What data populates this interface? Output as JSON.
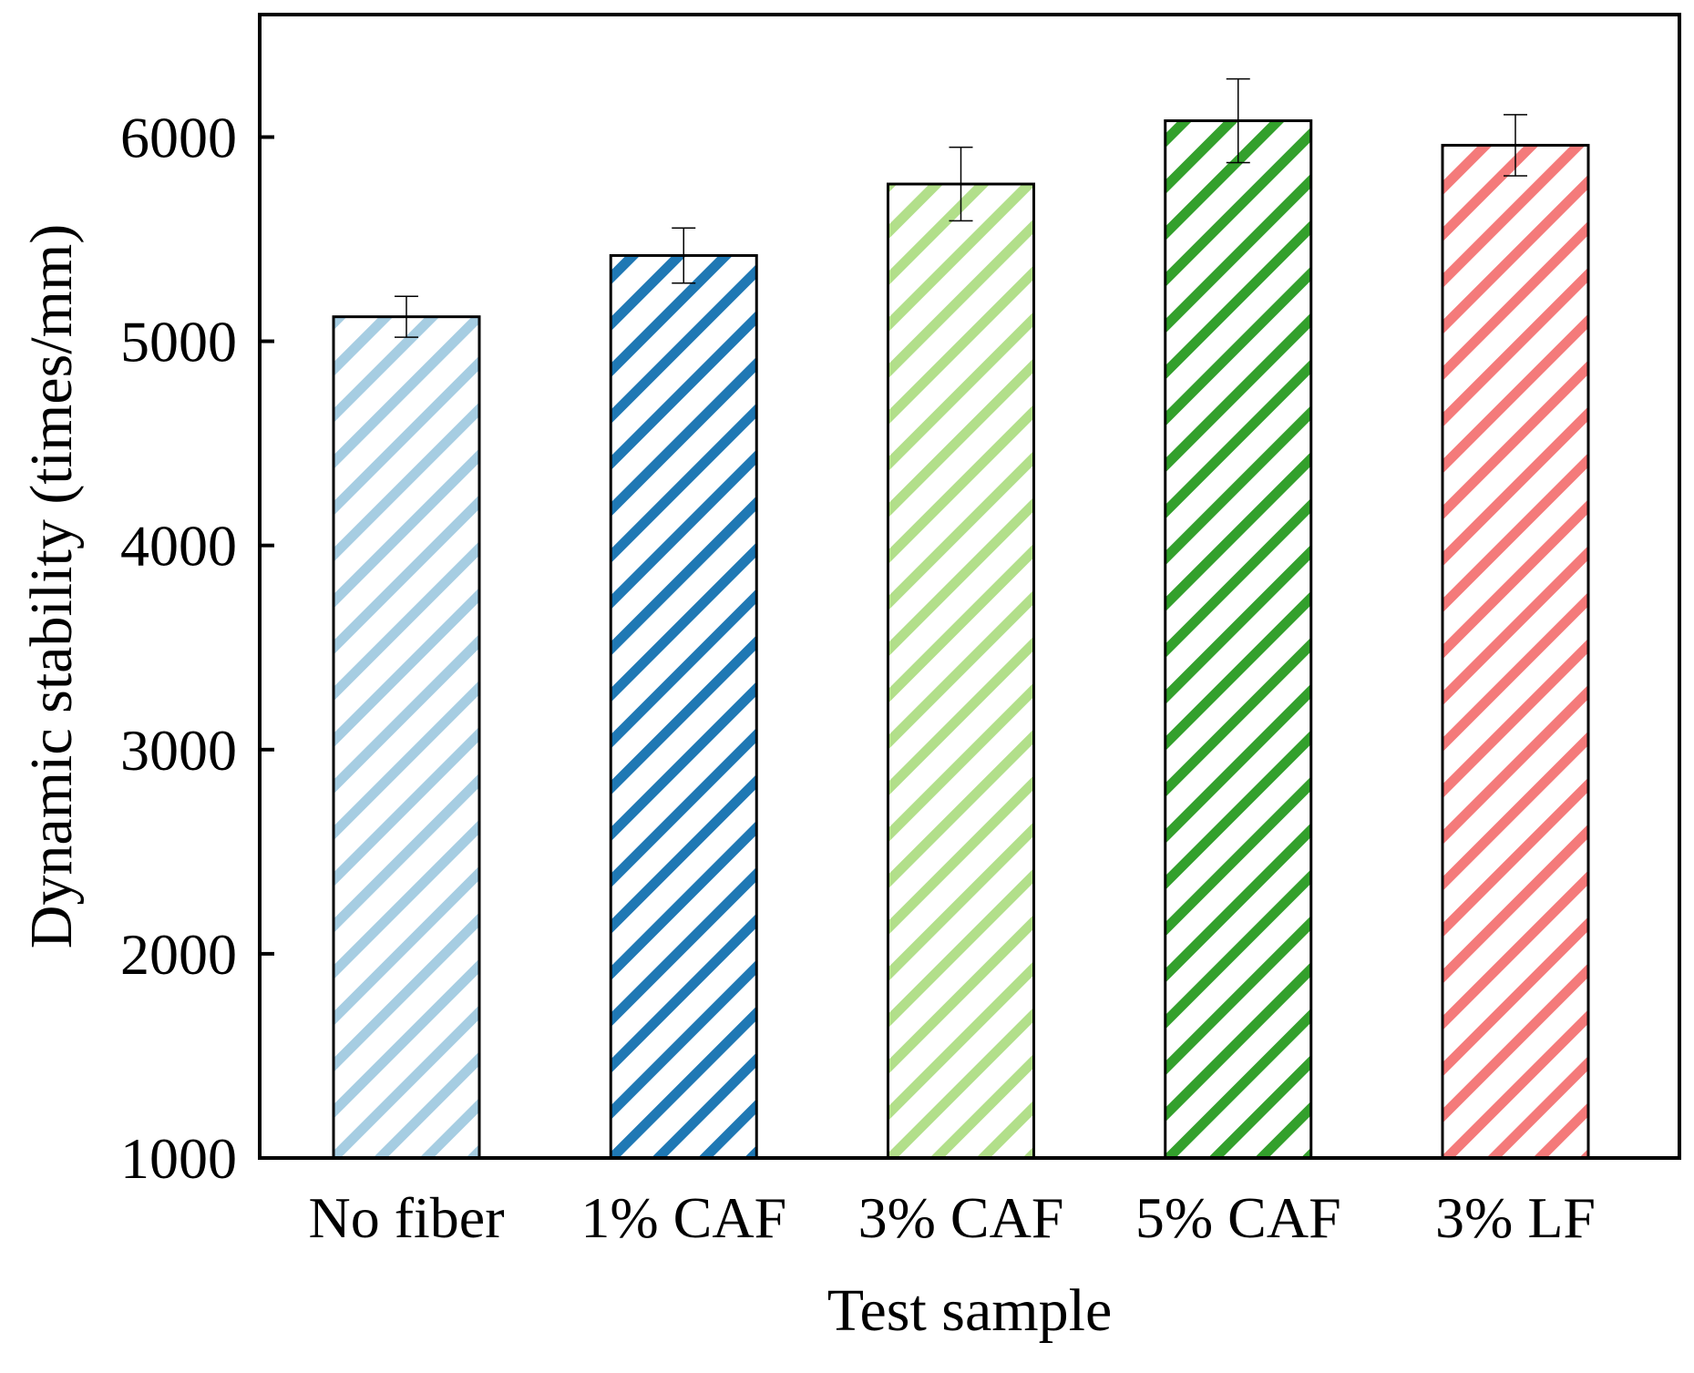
{
  "chart_data": {
    "type": "bar",
    "title": "",
    "xlabel": "Test sample",
    "ylabel": "Dynamic stability (times/mm)",
    "categories": [
      "No fiber",
      "1% CAF",
      "3% CAF",
      "5% CAF",
      "3% LF"
    ],
    "values": [
      5120,
      5420,
      5770,
      6080,
      5960
    ],
    "errors": [
      100,
      135,
      180,
      205,
      150
    ],
    "ylim": [
      1000,
      6600
    ],
    "yticks": [
      1000,
      2000,
      3000,
      4000,
      5000,
      6000
    ],
    "ytick_labels": [
      "1000",
      "2000",
      "3000",
      "4000",
      "5000",
      "6000"
    ],
    "colors": [
      "#a6cde2",
      "#1f78b4",
      "#b2df8a",
      "#33a02c",
      "#f47a7a"
    ],
    "pattern": "diagonal-hatch",
    "grid": false,
    "legend": "none"
  }
}
